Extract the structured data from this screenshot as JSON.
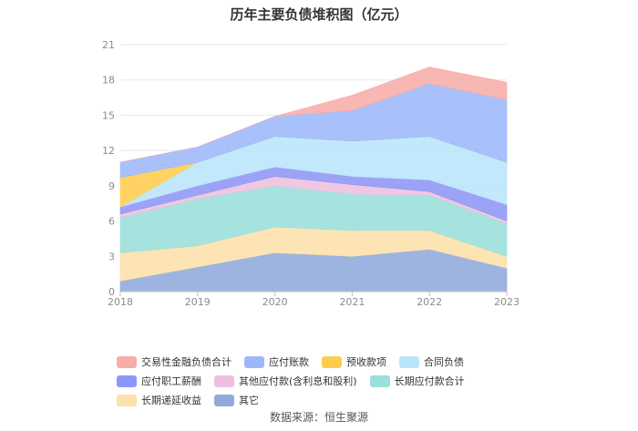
{
  "chart_data": {
    "type": "area",
    "stacked": true,
    "title": "历年主要负债堆积图（亿元）",
    "categories": [
      "2018",
      "2019",
      "2020",
      "2021",
      "2022",
      "2023"
    ],
    "ylim": [
      0,
      21
    ],
    "yticks": [
      0,
      3,
      6,
      9,
      12,
      15,
      18,
      21
    ],
    "grid": true,
    "legend_position": "bottom",
    "series": [
      {
        "name": "其它",
        "color": "#8FAADC",
        "values": [
          0.9,
          2.1,
          3.3,
          3.0,
          3.6,
          2.0
        ]
      },
      {
        "name": "长期递延收益",
        "color": "#FDE0AA",
        "values": [
          2.4,
          1.8,
          2.2,
          2.2,
          1.6,
          1.0
        ]
      },
      {
        "name": "长期应付款合计",
        "color": "#9ADFDA",
        "values": [
          3.0,
          4.0,
          3.5,
          3.1,
          3.0,
          2.8
        ]
      },
      {
        "name": "其他应付款(含利息和股利)",
        "color": "#EEC0DE",
        "values": [
          0.3,
          0.3,
          0.8,
          0.8,
          0.3,
          0.2
        ]
      },
      {
        "name": "应付职工薪酬",
        "color": "#8E96F5",
        "values": [
          0.6,
          0.8,
          0.8,
          0.7,
          1.0,
          1.4
        ]
      },
      {
        "name": "合同负债",
        "color": "#B8E6FA",
        "values": [
          0.0,
          2.0,
          2.6,
          3.0,
          3.7,
          3.6
        ]
      },
      {
        "name": "预收款项",
        "color": "#FFCC4D",
        "values": [
          2.5,
          0.0,
          0.0,
          0.0,
          0.0,
          0.0
        ]
      },
      {
        "name": "应付账款",
        "color": "#9DB8FA",
        "values": [
          1.3,
          1.3,
          1.7,
          2.6,
          4.5,
          5.3
        ]
      },
      {
        "name": "交易性金融负债合计",
        "color": "#F7ADA8",
        "values": [
          0.0,
          0.0,
          0.0,
          1.3,
          1.4,
          1.5
        ]
      }
    ],
    "legend_order": [
      "交易性金融负债合计",
      "应付账款",
      "预收款项",
      "合同负债",
      "应付职工薪酬",
      "其他应付款(含利息和股利)",
      "长期应付款合计",
      "长期递延收益",
      "其它"
    ]
  },
  "source": "数据来源：恒生聚源"
}
